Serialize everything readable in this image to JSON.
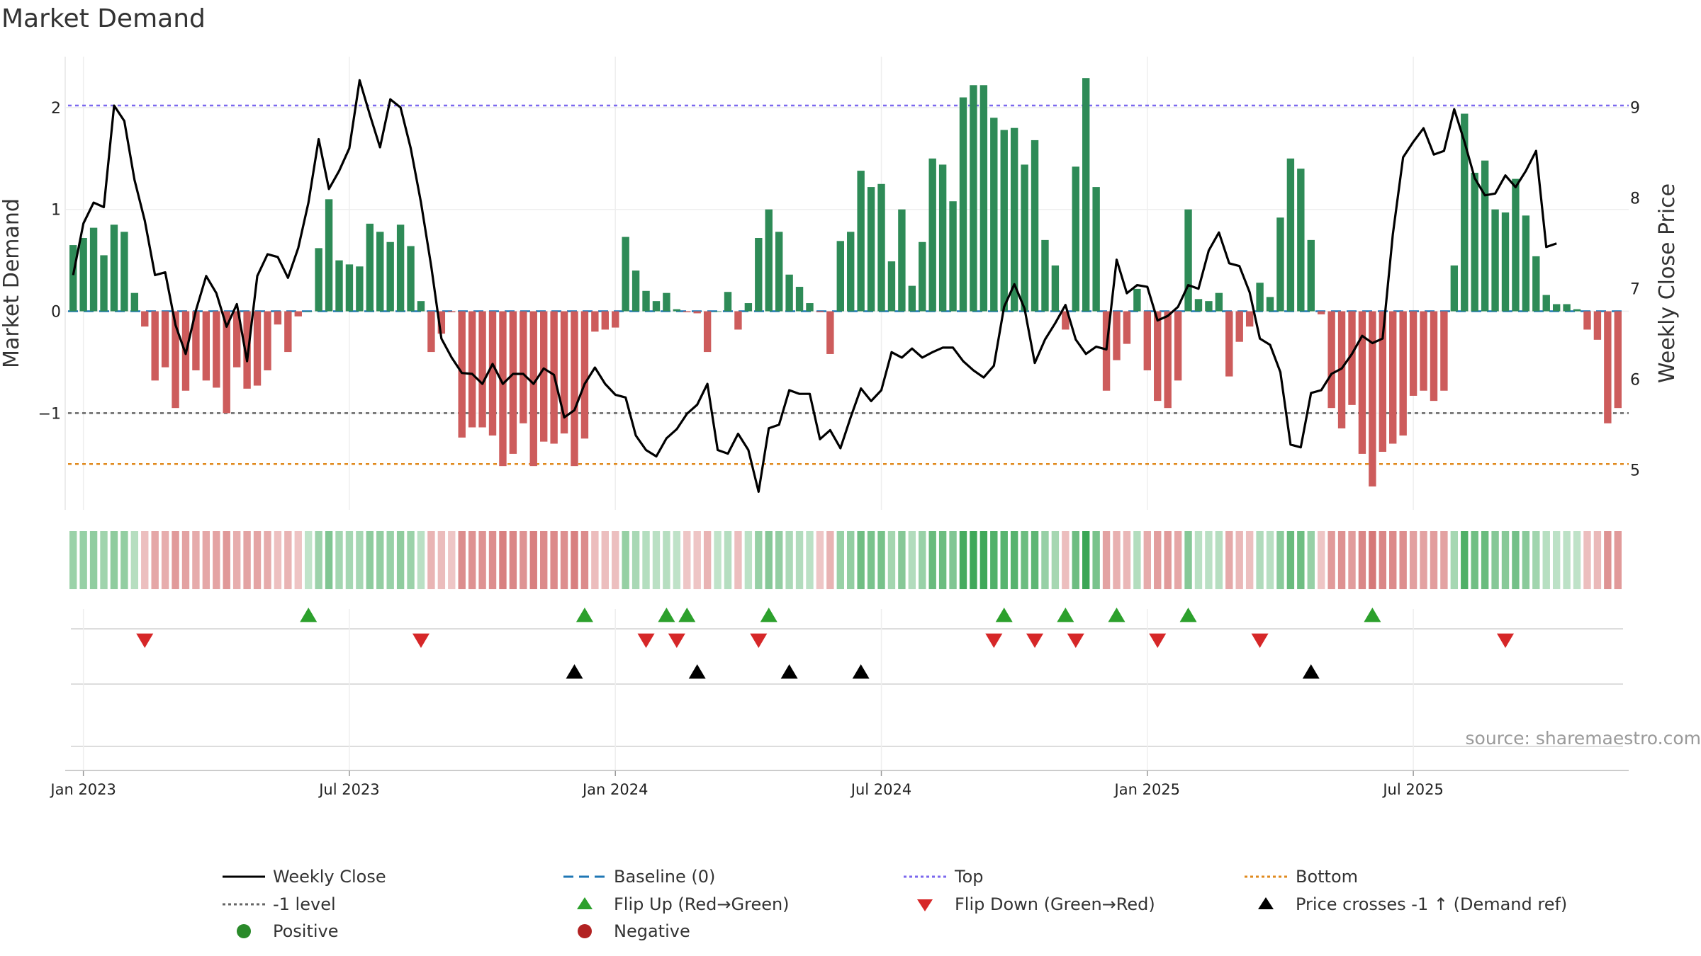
{
  "chart_data": {
    "type": "bar",
    "title": "Market Demand",
    "ylabel": "Market Demand",
    "y2label": "Weekly Close Price",
    "ylim": [
      -1.95,
      2.5
    ],
    "y2lim": [
      4.56,
      9.56
    ],
    "yticks": [
      {
        "v": 2,
        "label": "2"
      },
      {
        "v": 1,
        "label": "1"
      },
      {
        "v": 0,
        "label": "0"
      },
      {
        "v": -1,
        "label": "−1"
      }
    ],
    "y2ticks": [
      {
        "v": 9,
        "label": "9"
      },
      {
        "v": 8,
        "label": "8"
      },
      {
        "v": 7,
        "label": "7"
      },
      {
        "v": 6,
        "label": "6"
      },
      {
        "v": 5,
        "label": "5"
      }
    ],
    "xticks": [
      {
        "week": 1,
        "label": "Jan 2023"
      },
      {
        "week": 27,
        "label": "Jul 2023"
      },
      {
        "week": 53,
        "label": "Jan 2024"
      },
      {
        "week": 79,
        "label": "Jul 2024"
      },
      {
        "week": 105,
        "label": "Jan 2025"
      },
      {
        "week": 131,
        "label": "Jul 2025"
      }
    ],
    "reference_lines": {
      "top": 2.02,
      "bottom": -1.5,
      "minus_one": -1,
      "baseline": 0
    },
    "demand": [
      0.65,
      0.72,
      0.82,
      0.55,
      0.85,
      0.78,
      0.18,
      -0.15,
      -0.68,
      -0.55,
      -0.95,
      -0.78,
      -0.58,
      -0.68,
      -0.75,
      -1.0,
      -0.55,
      -0.76,
      -0.73,
      -0.58,
      -0.13,
      -0.4,
      -0.05,
      0.0,
      0.62,
      1.1,
      0.5,
      0.46,
      0.44,
      0.86,
      0.78,
      0.68,
      0.85,
      0.64,
      0.1,
      -0.4,
      -0.22,
      -0.01,
      -1.24,
      -1.14,
      -1.14,
      -1.22,
      -1.52,
      -1.4,
      -1.1,
      -1.52,
      -1.28,
      -1.3,
      -1.2,
      -1.52,
      -1.25,
      -0.2,
      -0.18,
      -0.16,
      0.73,
      0.4,
      0.2,
      0.1,
      0.18,
      0.02,
      -0.01,
      -0.02,
      -0.4,
      0.0,
      0.19,
      -0.18,
      0.08,
      0.72,
      1.0,
      0.78,
      0.36,
      0.24,
      0.08,
      -0.01,
      -0.42,
      0.69,
      0.78,
      1.38,
      1.22,
      1.25,
      0.49,
      1.0,
      0.25,
      0.68,
      1.5,
      1.44,
      1.08,
      2.1,
      2.22,
      2.22,
      1.9,
      1.78,
      1.8,
      1.44,
      1.68,
      0.7,
      0.45,
      -0.18,
      1.42,
      2.29,
      1.22,
      -0.78,
      -0.48,
      -0.32,
      0.22,
      -0.58,
      -0.88,
      -0.95,
      -0.68,
      1.0,
      0.12,
      0.1,
      0.18,
      -0.64,
      -0.3,
      -0.15,
      0.28,
      0.14,
      0.92,
      1.5,
      1.4,
      0.7,
      -0.03,
      -0.95,
      -1.15,
      -0.92,
      -1.4,
      -1.72,
      -1.38,
      -1.3,
      -1.22,
      -0.83,
      -0.78,
      -0.88,
      -0.78,
      0.45,
      1.94,
      1.36,
      1.48,
      1.0,
      0.97,
      1.3,
      0.94,
      0.54,
      0.16,
      0.07,
      0.07,
      0.02,
      -0.18,
      -0.28,
      -1.1,
      -0.95
    ],
    "price": [
      7.15,
      7.72,
      7.95,
      7.9,
      9.02,
      8.85,
      8.2,
      7.75,
      7.15,
      7.18,
      6.6,
      6.28,
      6.76,
      7.14,
      6.95,
      6.58,
      6.83,
      6.2,
      7.14,
      7.38,
      7.35,
      7.12,
      7.45,
      7.95,
      8.65,
      8.1,
      8.3,
      8.55,
      9.3,
      8.92,
      8.56,
      9.09,
      9.0,
      8.55,
      7.95,
      7.25,
      6.45,
      6.24,
      6.07,
      6.06,
      5.95,
      6.17,
      5.95,
      6.06,
      6.06,
      5.95,
      6.12,
      6.05,
      5.58,
      5.66,
      5.95,
      6.13,
      5.95,
      5.83,
      5.8,
      5.38,
      5.22,
      5.15,
      5.35,
      5.45,
      5.62,
      5.72,
      5.95,
      5.22,
      5.18,
      5.4,
      5.22,
      4.76,
      5.46,
      5.5,
      5.88,
      5.84,
      5.84,
      5.34,
      5.44,
      5.24,
      5.58,
      5.9,
      5.76,
      5.88,
      6.3,
      6.24,
      6.34,
      6.24,
      6.3,
      6.35,
      6.35,
      6.2,
      6.1,
      6.02,
      6.15,
      6.8,
      7.05,
      6.78,
      6.18,
      6.44,
      6.62,
      6.82,
      6.44,
      6.28,
      6.36,
      6.33,
      7.32,
      6.95,
      7.04,
      7.02,
      6.65,
      6.7,
      6.8,
      7.04,
      7.0,
      7.42,
      7.62,
      7.28,
      7.25,
      6.96,
      6.45,
      6.38,
      6.08,
      5.28,
      5.25,
      5.85,
      5.88,
      6.06,
      6.12,
      6.28,
      6.48,
      6.4,
      6.45,
      7.6,
      8.45,
      8.62,
      8.77,
      8.48,
      8.52,
      8.98,
      8.62,
      8.22,
      8.03,
      8.05,
      8.25,
      8.12,
      8.3,
      8.52,
      7.46,
      7.5
    ],
    "flip_up_weeks": [
      23,
      50,
      58,
      60,
      68,
      91,
      97,
      102,
      109,
      127
    ],
    "flip_down_weeks": [
      7,
      34,
      56,
      59,
      67,
      90,
      94,
      98,
      106,
      116,
      140
    ],
    "price_cross_weeks": [
      49,
      61,
      70,
      77,
      121
    ],
    "legend": [
      "Weekly Close",
      "Baseline (0)",
      "Top",
      "Bottom",
      "-1 level",
      "Flip Up (Red→Green)",
      "Flip Down (Green→Red)",
      "Price crosses -1 ↑ (Demand ref)",
      "Positive",
      "Negative"
    ]
  },
  "source": "source: sharemaestro.com",
  "colors": {
    "positive": "#2e8b57",
    "negative": "#cd5c5c",
    "price": "#000000",
    "baseline": "#1f77b4",
    "top": "#7b68ee",
    "bottom": "#e08a1e",
    "minus_one": "#666666",
    "flip_up": "#2ca02c",
    "flip_down": "#d62728",
    "cross": "#000000",
    "legend_positive": "#2a8a2a",
    "legend_negative": "#b22222"
  }
}
